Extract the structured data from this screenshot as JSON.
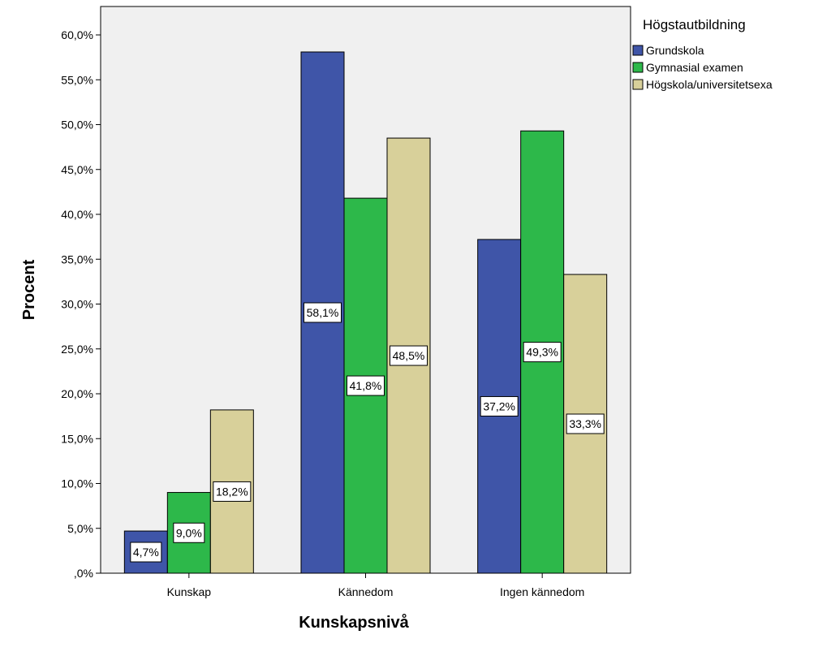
{
  "chart_data": {
    "type": "bar",
    "xlabel": "Kunskapsnivå",
    "ylabel": "Procent",
    "ylim": [
      0,
      60
    ],
    "yticks": [
      ",0%",
      "5,0%",
      "10,0%",
      "15,0%",
      "20,0%",
      "25,0%",
      "30,0%",
      "35,0%",
      "40,0%",
      "45,0%",
      "50,0%",
      "55,0%",
      "60,0%"
    ],
    "categories": [
      "Kunskap",
      "Kännedom",
      "Ingen kännedom"
    ],
    "legend_title": "Högstautbildning",
    "legend_position": "top-right, outside plot",
    "grid": false,
    "series": [
      {
        "name": "Grundskola",
        "color": "#3f55a8",
        "values": [
          4.7,
          58.1,
          37.2
        ],
        "labels": [
          "4,7%",
          "58,1%",
          "37,2%"
        ]
      },
      {
        "name": "Gymnasial examen",
        "color": "#2db84a",
        "values": [
          9.0,
          41.8,
          49.3
        ],
        "labels": [
          "9,0%",
          "41,8%",
          "49,3%"
        ]
      },
      {
        "name": "Högskola/universitetsexa",
        "color": "#d8d09a",
        "values": [
          18.2,
          48.5,
          33.3
        ],
        "labels": [
          "18,2%",
          "48,5%",
          "33,3%"
        ]
      }
    ],
    "plot_background": "#f0f0f0"
  }
}
